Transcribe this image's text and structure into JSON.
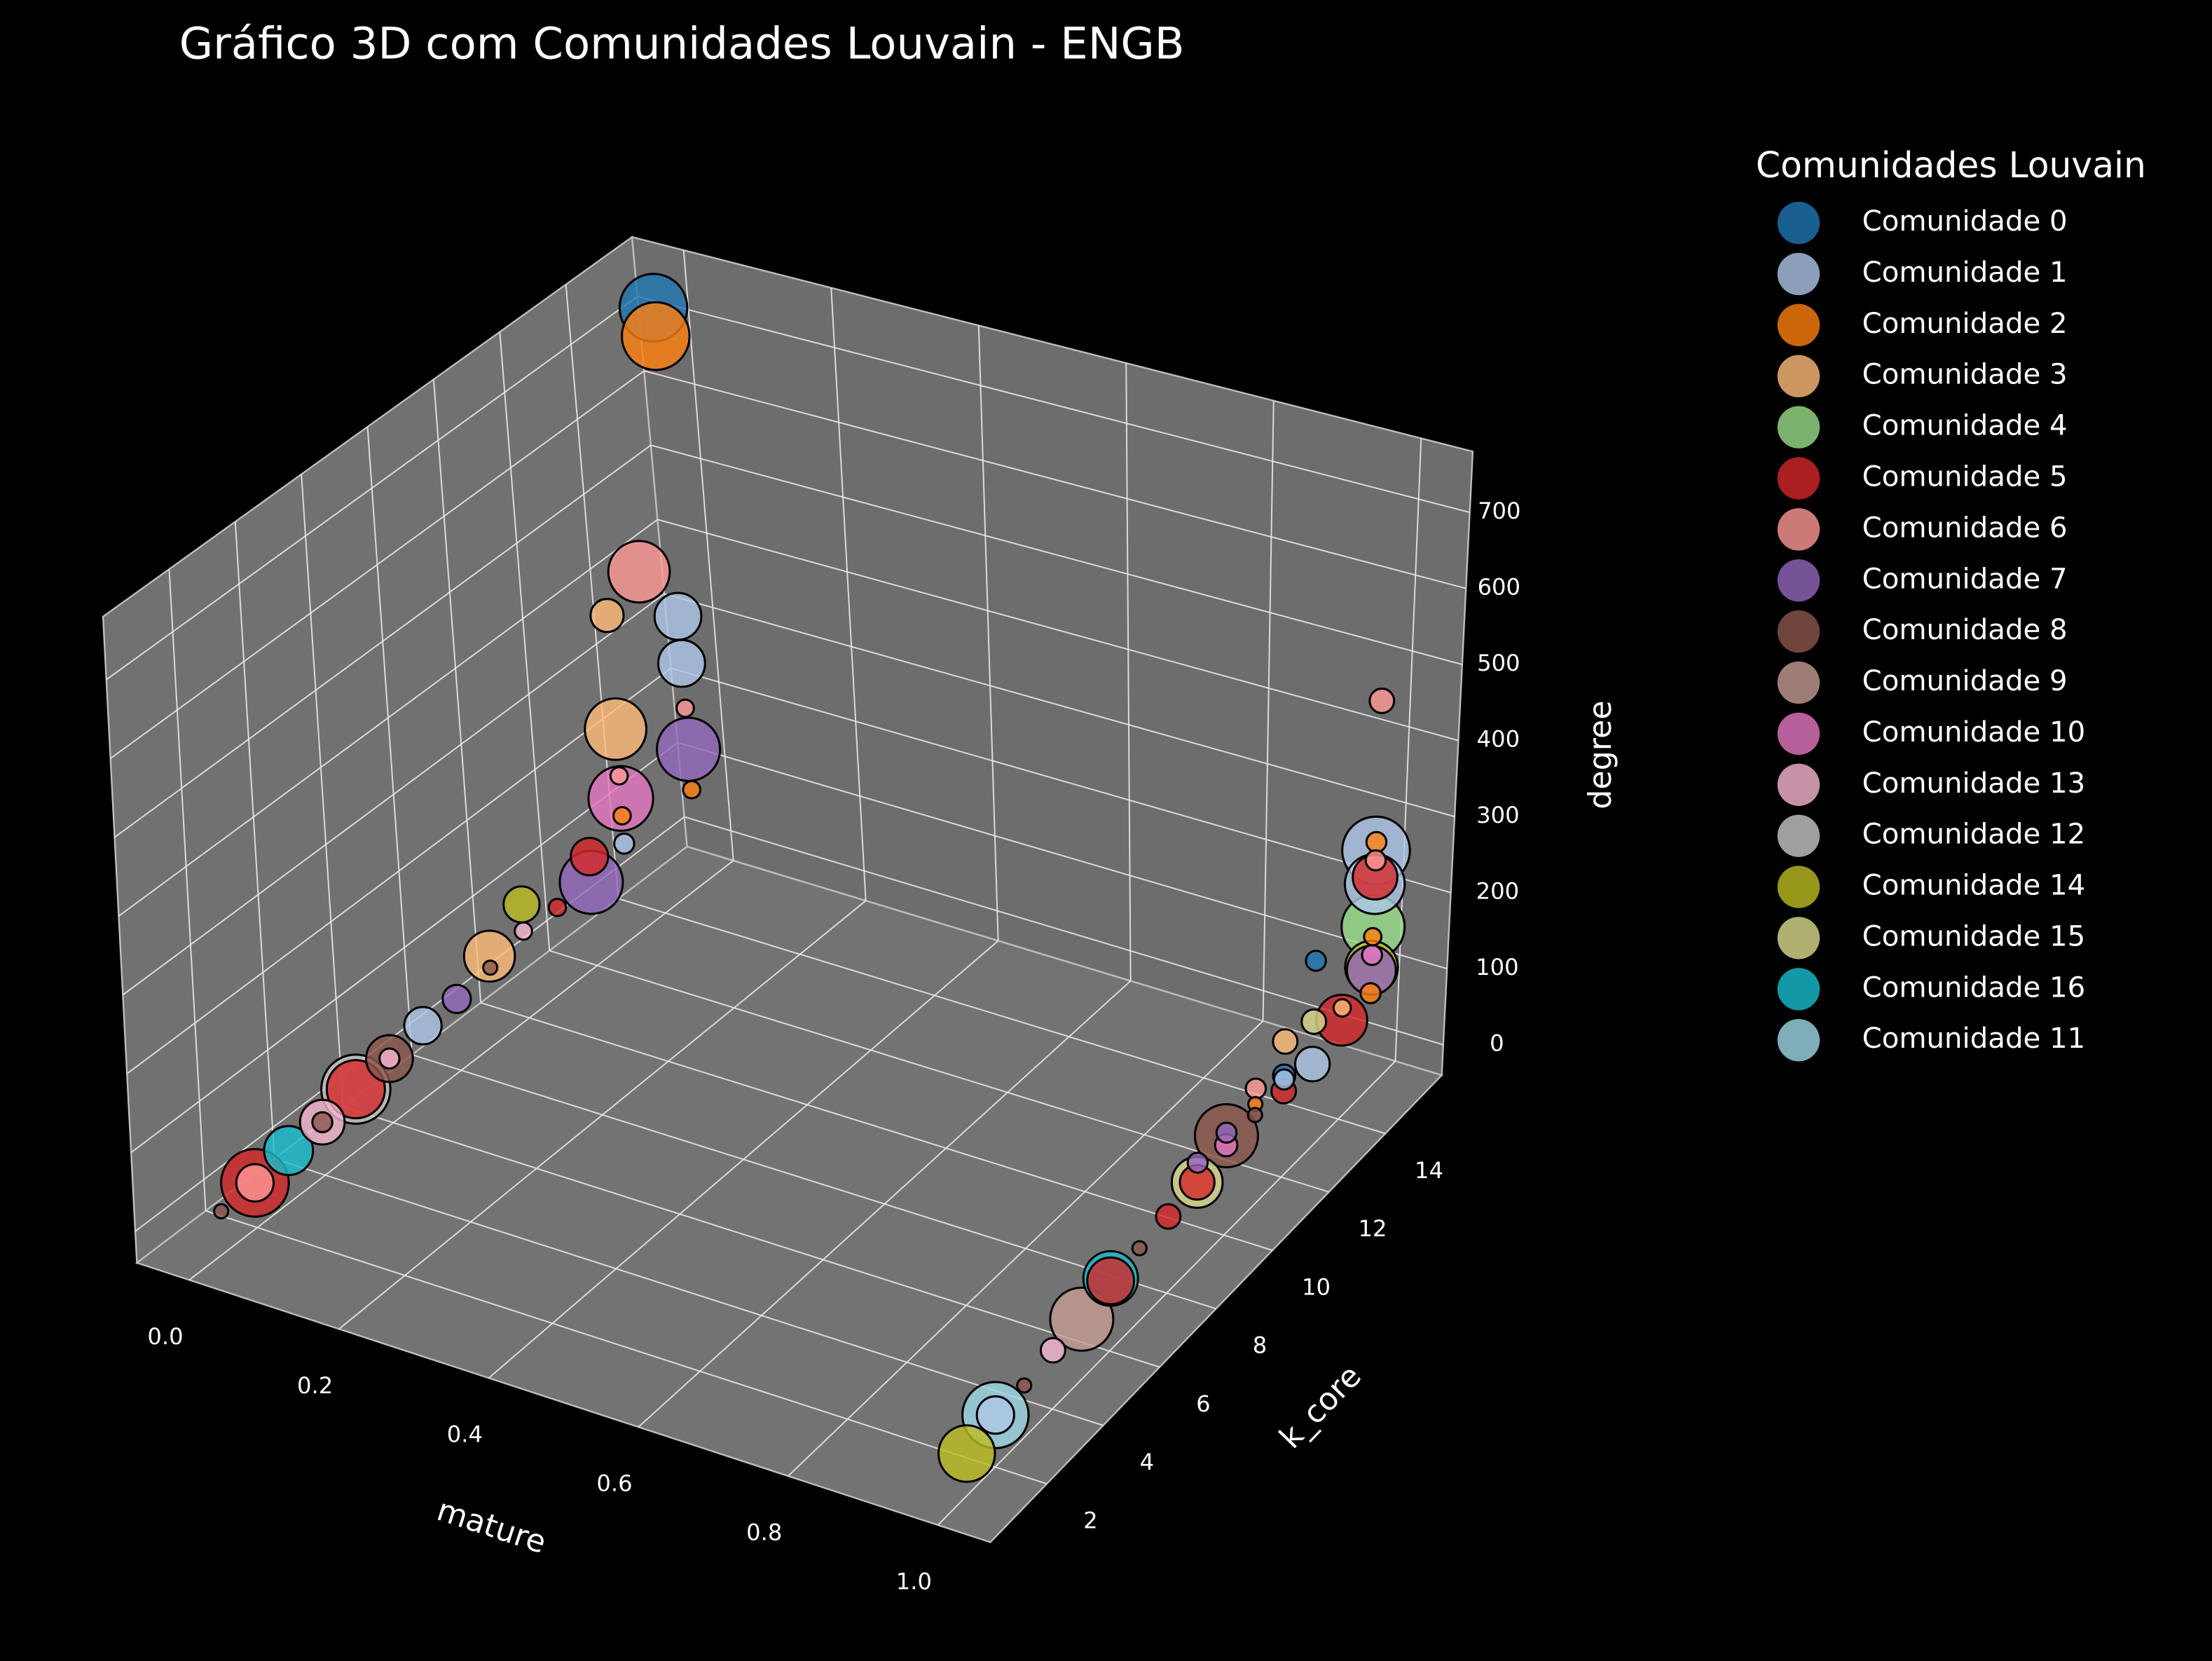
{
  "chart_data": {
    "type": "scatter3d",
    "title": "Gráfico 3D com Comunidades Louvain - ENGB",
    "xlabel": "mature",
    "ylabel": "k_core",
    "zlabel": "degree",
    "legend_title": "Comunidades Louvain",
    "xlim": [
      -0.07,
      1.07
    ],
    "ylim": [
      0,
      16
    ],
    "zlim": [
      -40,
      780
    ],
    "xticks": [
      {
        "value": 0,
        "label": "0.0"
      },
      0.2,
      0.4,
      0.6,
      0.8,
      {
        "value": 1,
        "label": "1.0"
      }
    ],
    "yticks": [
      2,
      4,
      6,
      8,
      10,
      12,
      14
    ],
    "zticks": [
      0,
      100,
      200,
      300,
      400,
      500,
      600,
      700
    ],
    "grid": true,
    "alpha": 0.8,
    "pane_color": "#737373",
    "background": "#000000",
    "series": [
      {
        "name": "Comunidade 0",
        "color": "#1f77b4",
        "x": [
          0,
          1,
          1
        ],
        "y": [
          15,
          13,
          12
        ],
        "z": [
          735,
          203,
          91
        ],
        "sizes": [
          2300,
          200,
          250
        ]
      },
      {
        "name": "Comunidade 1",
        "color": "#aec7e8",
        "x": [
          0,
          0,
          0,
          0,
          1,
          1,
          1,
          1,
          1
        ],
        "y": [
          15,
          15,
          7,
          13,
          2,
          15,
          15,
          13,
          12
        ],
        "z": [
          322,
          259,
          52,
          87,
          24,
          274,
          230,
          69,
          86
        ],
        "sizes": [
          1100,
          1100,
          700,
          200,
          700,
          2300,
          1800,
          600,
          200
        ]
      },
      {
        "name": "Comunidade 2",
        "color": "#ff7f0e",
        "x": [
          0,
          0,
          0,
          1,
          1,
          1,
          1
        ],
        "y": [
          15,
          13,
          15,
          15,
          15,
          15,
          11
        ],
        "z": [
          697,
          124,
          90,
          285,
          161,
          87,
          91
        ],
        "sizes": [
          2300,
          150,
          150,
          200,
          150,
          200,
          100
        ]
      },
      {
        "name": "Comunidade 3",
        "color": "#ffbb78",
        "x": [
          0,
          0,
          0,
          1,
          1
        ],
        "y": [
          13,
          13,
          9,
          12,
          14
        ],
        "z": [
          390,
          239,
          75,
          135,
          105
        ],
        "sizes": [
          550,
          1900,
          1300,
          300,
          150
        ]
      },
      {
        "name": "Comunidade 4",
        "color": "#98df8a",
        "x": [
          1
        ],
        "y": [
          15
        ],
        "z": [
          174
        ],
        "sizes": [
          2000
        ]
      },
      {
        "name": "Comunidade 5",
        "color": "#d62728",
        "x": [
          0,
          0,
          0,
          0,
          1,
          1,
          1,
          1,
          1,
          1
        ],
        "y": [
          2,
          5,
          12,
          11,
          6,
          8,
          9,
          12,
          14,
          15
        ],
        "z": [
          17,
          37,
          104,
          71,
          48,
          57,
          64,
          71,
          89,
          239
        ],
        "sizes": [
          2300,
          1700,
          700,
          150,
          1100,
          300,
          600,
          300,
          1300,
          1000
        ]
      },
      {
        "name": "Comunidade 6",
        "color": "#ff9896",
        "x": [
          0,
          0,
          0,
          0,
          1,
          1,
          1
        ],
        "y": [
          2,
          14,
          13,
          15,
          11,
          15,
          15
        ],
        "z": [
          17,
          415,
          177,
          199,
          111,
          261,
          470
        ],
        "sizes": [
          700,
          1900,
          150,
          150,
          200,
          200,
          300
        ]
      },
      {
        "name": "Comunidade 7",
        "color": "#9467bd",
        "x": [
          0,
          0,
          0,
          1,
          1,
          1
        ],
        "y": [
          15,
          12,
          8,
          9,
          10,
          15
        ],
        "z": [
          144,
          70,
          53,
          89,
          91,
          117
        ],
        "sizes": [
          2000,
          2000,
          400,
          200,
          200,
          1200
        ]
      },
      {
        "name": "Comunidade 8",
        "color": "#8c564b",
        "x": [
          0,
          0,
          1,
          0,
          1,
          1,
          0,
          1
        ],
        "y": [
          6,
          4,
          10,
          1,
          3,
          7,
          9,
          11
        ],
        "z": [
          43,
          28,
          87,
          14,
          25,
          53,
          60,
          77
        ],
        "sizes": [
          1100,
          200,
          2000,
          100,
          100,
          100,
          100,
          100
        ]
      },
      {
        "name": "Comunidade 9",
        "color": "#c49c94",
        "x": [
          1
        ],
        "y": [
          5
        ],
        "z": [
          36
        ],
        "sizes": [
          2000
        ]
      },
      {
        "name": "Comunidade 10",
        "color": "#e377c2",
        "x": [
          0,
          1,
          1
        ],
        "y": [
          13,
          10,
          15
        ],
        "z": [
          147,
          75,
          137
        ],
        "sizes": [
          2100,
          250,
          200
        ]
      },
      {
        "name": "Comunidade 13",
        "color": "#f7b6d2",
        "x": [
          0,
          0,
          0,
          1
        ],
        "y": [
          4,
          6,
          10,
          4
        ],
        "z": [
          28,
          43,
          74,
          33
        ],
        "sizes": [
          1000,
          200,
          150,
          300
        ]
      },
      {
        "name": "Comunidade 12",
        "color": "#c7c7c7",
        "x": [
          0
        ],
        "y": [
          5
        ],
        "z": [
          37
        ],
        "sizes": [
          2400
        ]
      },
      {
        "name": "Comunidade 14",
        "color": "#bcbd22",
        "x": [
          0,
          1,
          1
        ],
        "y": [
          10,
          1,
          15
        ],
        "z": [
          109,
          12,
          121
        ],
        "sizes": [
          650,
          1600,
          1400
        ]
      },
      {
        "name": "Comunidade 15",
        "color": "#dbdb8d",
        "x": [
          1,
          1
        ],
        "y": [
          9,
          13
        ],
        "z": [
          64,
          124
        ],
        "sizes": [
          1300,
          300
        ]
      },
      {
        "name": "Comunidade 16",
        "color": "#17becf",
        "x": [
          0,
          1
        ],
        "y": [
          3,
          6
        ],
        "z": [
          25,
          51
        ],
        "sizes": [
          1200,
          1500
        ]
      },
      {
        "name": "Comunidade 11",
        "color": "#9edae5",
        "x": [
          1
        ],
        "y": [
          2
        ],
        "z": [
          24
        ],
        "sizes": [
          2200
        ]
      }
    ]
  }
}
